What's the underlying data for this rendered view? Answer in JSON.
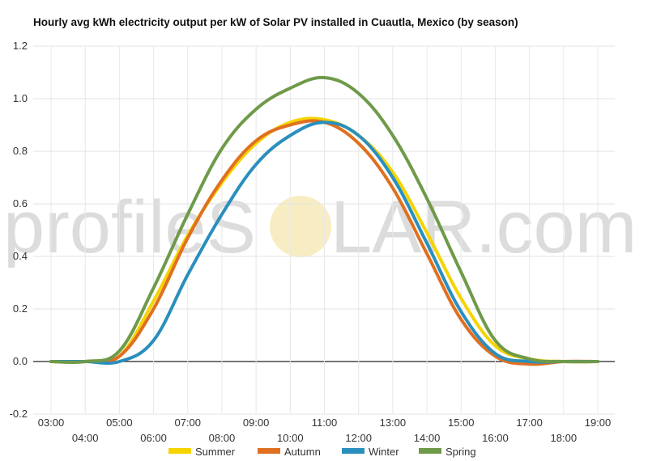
{
  "chart_data": {
    "type": "line",
    "title": "Hourly avg kWh electricity output per kW of Solar PV installed in Cuautla, Mexico (by season)",
    "xlabel": "",
    "ylabel": "",
    "x": [
      "03:00",
      "04:00",
      "05:00",
      "06:00",
      "07:00",
      "08:00",
      "09:00",
      "10:00",
      "11:00",
      "12:00",
      "13:00",
      "14:00",
      "15:00",
      "16:00",
      "17:00",
      "18:00",
      "19:00"
    ],
    "ylim": [
      -0.2,
      1.2
    ],
    "yticks": [
      "-0.2",
      "0.0",
      "0.2",
      "0.4",
      "0.6",
      "0.8",
      "1.0",
      "1.2"
    ],
    "grid": true,
    "legend_position": "bottom",
    "series": [
      {
        "name": "Summer",
        "color": "#f5d400",
        "values": [
          0,
          0,
          0.02,
          0.23,
          0.48,
          0.68,
          0.83,
          0.91,
          0.92,
          0.86,
          0.72,
          0.49,
          0.24,
          0.06,
          0.01,
          0,
          0
        ]
      },
      {
        "name": "Autumn",
        "color": "#e07020",
        "values": [
          0,
          0,
          0.02,
          0.2,
          0.47,
          0.69,
          0.84,
          0.9,
          0.91,
          0.83,
          0.66,
          0.41,
          0.16,
          0.02,
          -0.01,
          0,
          0
        ]
      },
      {
        "name": "Winter",
        "color": "#2a8fbd",
        "values": [
          0,
          0,
          0,
          0.08,
          0.33,
          0.56,
          0.75,
          0.86,
          0.91,
          0.86,
          0.7,
          0.45,
          0.19,
          0.03,
          0,
          0,
          0
        ]
      },
      {
        "name": "Spring",
        "color": "#6f9a4a",
        "values": [
          0,
          0,
          0.04,
          0.28,
          0.56,
          0.81,
          0.96,
          1.04,
          1.08,
          1.02,
          0.86,
          0.62,
          0.34,
          0.08,
          0.01,
          0,
          0
        ]
      }
    ]
  },
  "watermark": {
    "left_text": "profileS",
    "right_text": "LAR.com"
  }
}
